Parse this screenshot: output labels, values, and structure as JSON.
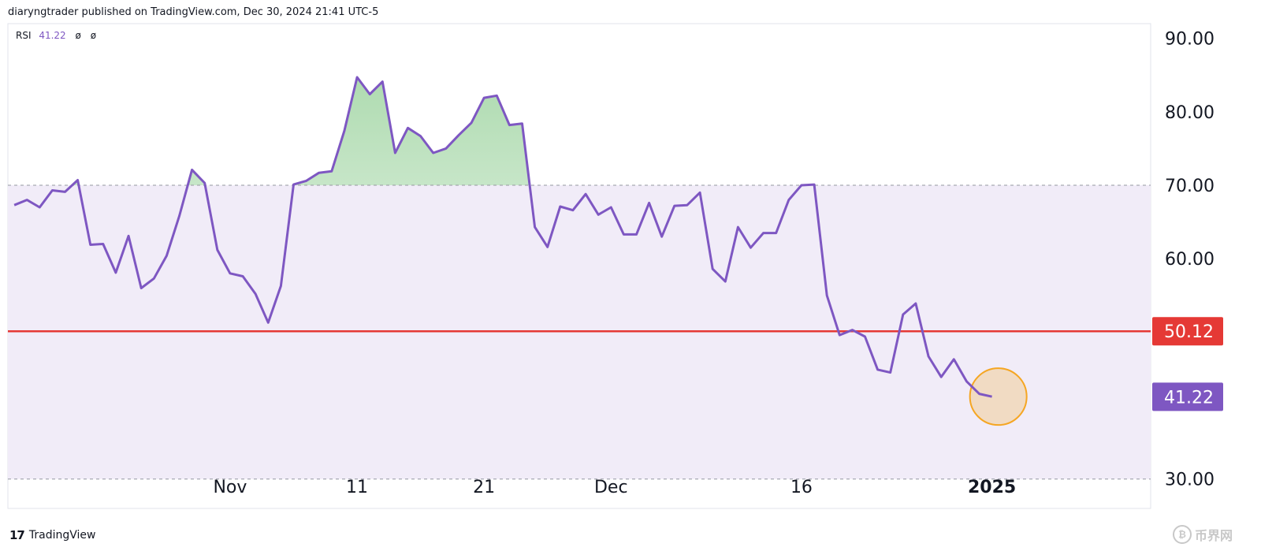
{
  "header": {
    "published": "diaryngtrader published on TradingView.com, Dec 30, 2024 21:41 UTC-5"
  },
  "legend": {
    "name": "RSI",
    "value": "41.22",
    "g1": "ø",
    "g2": "ø"
  },
  "footer": {
    "brand": "TradingView",
    "logo_text": "17",
    "watermark": "币界网"
  },
  "colors": {
    "rsi_line": "#7e57c2",
    "band_fill": "#f1ecf8",
    "overbought_fill": "#4caf50",
    "level_line": "#e53935",
    "highlight_circle": "#f5a623"
  },
  "chart_data": {
    "type": "line",
    "title": "",
    "xlabel": "",
    "ylabel": "",
    "ylim": [
      26,
      92
    ],
    "y_ticks": [
      "90.00",
      "80.00",
      "70.00",
      "60.00",
      "30.00"
    ],
    "x_ticks": [
      {
        "label": "Nov",
        "index": 17,
        "bold": false
      },
      {
        "label": "11",
        "index": 27,
        "bold": false
      },
      {
        "label": "21",
        "index": 37,
        "bold": false
      },
      {
        "label": "Dec",
        "index": 47,
        "bold": false
      },
      {
        "label": "16",
        "index": 62,
        "bold": false
      },
      {
        "label": "2025",
        "index": 77,
        "bold": true
      }
    ],
    "x_range": [
      -0.5,
      89.5
    ],
    "band": [
      30,
      70
    ],
    "dashed_levels": [
      70,
      30
    ],
    "level_line": {
      "value": 50.12,
      "label": "50.12"
    },
    "last_value": {
      "value": 41.22,
      "label": "41.22",
      "label_y_value": 41.2
    },
    "highlight_index": 77.5,
    "series": [
      {
        "values": [
          67.3,
          68.0,
          67.0,
          69.3,
          69.1,
          70.7,
          61.9,
          62.0,
          58.1,
          63.1,
          56.0,
          57.3,
          60.4,
          65.8,
          72.1,
          70.3,
          61.2,
          58.0,
          57.6,
          55.2,
          51.3,
          56.3,
          70.1,
          70.6,
          71.7,
          71.9,
          77.4,
          84.7,
          82.4,
          84.1,
          74.4,
          77.8,
          76.7,
          74.4,
          75.0,
          76.8,
          78.5,
          81.9,
          82.2,
          78.2,
          78.4,
          64.3,
          61.6,
          67.1,
          66.6,
          68.8,
          66.0,
          67.0,
          63.3,
          63.3,
          67.6,
          63.0,
          67.2,
          67.3,
          69.0,
          58.6,
          56.9,
          64.3,
          61.5,
          63.5,
          63.5,
          68.0,
          70.0,
          70.1,
          55.0,
          49.6,
          50.3,
          49.4,
          44.9,
          44.5,
          52.4,
          53.9,
          46.7,
          43.9,
          46.3,
          43.3,
          41.6,
          41.22
        ]
      }
    ]
  }
}
